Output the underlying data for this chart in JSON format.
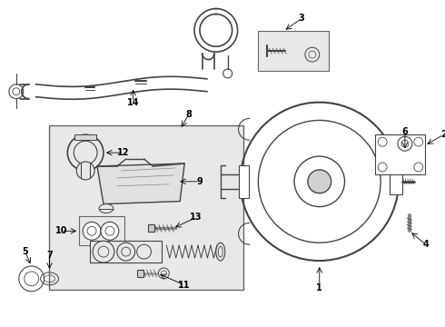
{
  "background_color": "#ffffff",
  "line_color": "#444444",
  "label_color": "#000000",
  "bg_box_color": "#e8e8e8",
  "figsize": [
    4.9,
    3.6
  ],
  "dpi": 100
}
